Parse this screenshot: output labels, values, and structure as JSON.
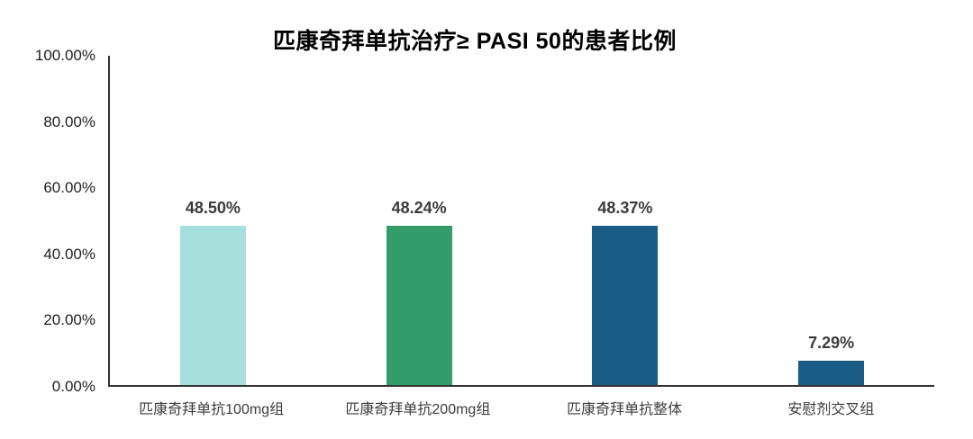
{
  "chart_data": {
    "type": "bar",
    "title": "匹康奇拜单抗治疗≥ PASI 50的患者比例",
    "categories": [
      "匹康奇拜单抗100mg组",
      "匹康奇拜单抗200mg组",
      "匹康奇拜单抗整体",
      "安慰剂交叉组"
    ],
    "values": [
      48.5,
      48.24,
      48.37,
      7.29
    ],
    "value_labels": [
      "48.50%",
      "48.24%",
      "48.37%",
      "7.29%"
    ],
    "bar_colors": [
      "#a5e0dc",
      "#349b6b",
      "#1a5d84",
      "#1a5d84"
    ],
    "ylim": [
      0,
      100
    ],
    "y_tick_values": [
      0,
      20,
      40,
      60,
      80,
      100
    ],
    "y_tick_labels": [
      "0.00%",
      "20.00%",
      "40.00%",
      "60.00%",
      "80.00%",
      "100.00%"
    ],
    "xlabel": "",
    "ylabel": "",
    "grid": false,
    "legend": "none",
    "axis_color": "#333333"
  }
}
